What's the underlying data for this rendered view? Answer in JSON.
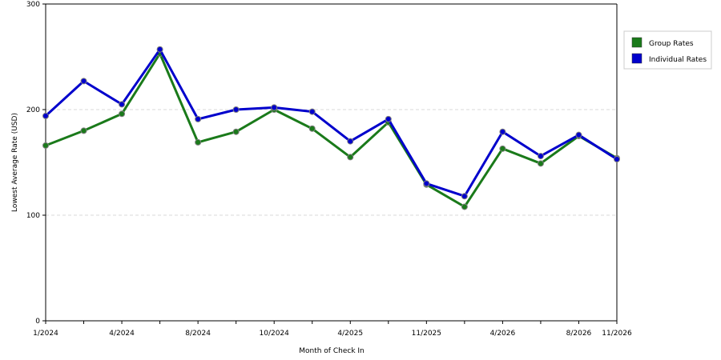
{
  "chart_data": {
    "type": "line",
    "xlabel": "Month of Check In",
    "ylabel": "Lowest Average Rate (USD)",
    "ylim": [
      0,
      300
    ],
    "y_ticks": [
      0,
      100,
      200,
      300
    ],
    "x_tick_labels": [
      "1/2024",
      "4/2024",
      "8/2024",
      "10/2024",
      "4/2025",
      "11/2025",
      "4/2026",
      "8/2026",
      "11/2026"
    ],
    "x_tick_label_indices": [
      0,
      2,
      4,
      6,
      8,
      10,
      12,
      14,
      15
    ],
    "grid": "horizontal dashed",
    "legend_position": "right",
    "series": [
      {
        "name": "Group Rates",
        "color": "#1a7a1a",
        "values": [
          166,
          180,
          196,
          253,
          169,
          179,
          200,
          182,
          155,
          188,
          129,
          108,
          163,
          149,
          175,
          154
        ]
      },
      {
        "name": "Individual Rates",
        "color": "#0000cc",
        "values": [
          194,
          227,
          205,
          257,
          191,
          200,
          202,
          198,
          170,
          191,
          130,
          118,
          179,
          156,
          176,
          153
        ]
      }
    ]
  }
}
